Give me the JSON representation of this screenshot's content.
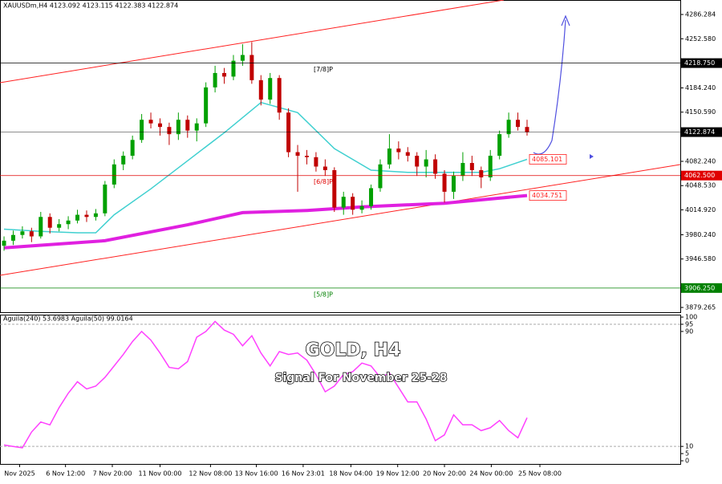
{
  "chart_data": [
    {
      "type": "candlestick",
      "title": "XAUUSDm,H4  4123.092 4123.115 4122.383 4122.874",
      "bull_color": "#00a000",
      "bear_color": "#c00000",
      "candles": [
        [
          3965,
          3978,
          3958,
          3972
        ],
        [
          3972,
          3986,
          3966,
          3980
        ],
        [
          3980,
          3992,
          3975,
          3985
        ],
        [
          3985,
          3990,
          3970,
          3978
        ],
        [
          3978,
          4012,
          3975,
          4005
        ],
        [
          4005,
          4010,
          3982,
          3990
        ],
        [
          3990,
          4002,
          3985,
          3995
        ],
        [
          3995,
          4006,
          3988,
          4000
        ],
        [
          4000,
          4015,
          3996,
          4008
        ],
        [
          4008,
          4014,
          3998,
          4005
        ],
        [
          4005,
          4016,
          4000,
          4010
        ],
        [
          4010,
          4055,
          4006,
          4050
        ],
        [
          4050,
          4085,
          4045,
          4078
        ],
        [
          4078,
          4096,
          4070,
          4090
        ],
        [
          4090,
          4118,
          4085,
          4112
        ],
        [
          4112,
          4148,
          4108,
          4140
        ],
        [
          4140,
          4150,
          4128,
          4135
        ],
        [
          4135,
          4142,
          4118,
          4130
        ],
        [
          4130,
          4136,
          4105,
          4120
        ],
        [
          4120,
          4150,
          4112,
          4140
        ],
        [
          4140,
          4146,
          4115,
          4125
        ],
        [
          4125,
          4142,
          4110,
          4135
        ],
        [
          4135,
          4192,
          4130,
          4185
        ],
        [
          4185,
          4215,
          4178,
          4205
        ],
        [
          4205,
          4212,
          4190,
          4200
        ],
        [
          4200,
          4230,
          4195,
          4222
        ],
        [
          4222,
          4245,
          4215,
          4230
        ],
        [
          4230,
          4248,
          4190,
          4195
        ],
        [
          4195,
          4202,
          4160,
          4168
        ],
        [
          4168,
          4205,
          4162,
          4198
        ],
        [
          4198,
          4202,
          4140,
          4150
        ],
        [
          4150,
          4156,
          4088,
          4095
        ],
        [
          4095,
          4105,
          4040,
          4090
        ],
        [
          4090,
          4098,
          4078,
          4088
        ],
        [
          4088,
          4095,
          4068,
          4075
        ],
        [
          4075,
          4085,
          4062,
          4070
        ],
        [
          4070,
          4074,
          4012,
          4018
        ],
        [
          4018,
          4040,
          4008,
          4033
        ],
        [
          4033,
          4038,
          4008,
          4015
        ],
        [
          4015,
          4028,
          4010,
          4020
        ],
        [
          4020,
          4050,
          4015,
          4045
        ],
        [
          4045,
          4085,
          4040,
          4078
        ],
        [
          4078,
          4120,
          4072,
          4100
        ],
        [
          4100,
          4110,
          4085,
          4095
        ],
        [
          4095,
          4102,
          4082,
          4090
        ],
        [
          4090,
          4095,
          4062,
          4075
        ],
        [
          4075,
          4098,
          4060,
          4085
        ],
        [
          4085,
          4092,
          4058,
          4065
        ],
        [
          4065,
          4070,
          4025,
          4040
        ],
        [
          4040,
          4068,
          4030,
          4062
        ],
        [
          4062,
          4095,
          4055,
          4080
        ],
        [
          4080,
          4090,
          4062,
          4070
        ],
        [
          4070,
          4075,
          4045,
          4060
        ],
        [
          4060,
          4098,
          4055,
          4090
        ],
        [
          4090,
          4125,
          4085,
          4120
        ],
        [
          4120,
          4150,
          4115,
          4140
        ],
        [
          4140,
          4150,
          4125,
          4130
        ],
        [
          4130,
          4140,
          4118,
          4122.874
        ]
      ],
      "series": [
        {
          "color": "#40d0d0",
          "width": 1.5,
          "x": [
            0,
            4,
            8,
            10,
            12,
            16,
            20,
            24,
            28,
            32,
            36,
            40,
            44,
            48,
            52,
            54,
            57
          ],
          "values": [
            3988,
            3985,
            3983,
            3983,
            4008,
            4044,
            4083,
            4122,
            4164,
            4150,
            4100,
            4070,
            4067,
            4067,
            4067,
            4072,
            4085.101
          ]
        },
        {
          "color": "#e020e0",
          "width": 4,
          "x": [
            0,
            11,
            20,
            26,
            33,
            39,
            48,
            57
          ],
          "values": [
            3962,
            3972,
            3994,
            4011,
            4014,
            4019,
            4024,
            4034.751
          ]
        }
      ],
      "levels": [
        {
          "value": 4218.75,
          "label": "4218.750",
          "color": "#000000",
          "tag": "[7/8]P"
        },
        {
          "value": 4122.874,
          "label": "4122.874",
          "color": "#000000"
        },
        {
          "value": 4062.5,
          "label": "4062.500",
          "color": "#e00000",
          "tag": "[6/8]P"
        },
        {
          "value": 3906.25,
          "label": "3906.250",
          "color": "#008000",
          "tag": "[5/8]P"
        }
      ],
      "xlim": [
        -0.44,
        73.7
      ],
      "xticks": [
        {
          "value": 1.7,
          "label": "Nov 2025"
        },
        {
          "value": 6.7,
          "label": "6 Nov 12:00"
        },
        {
          "value": 11.8,
          "label": "7 Nov 20:00"
        },
        {
          "value": 17.0,
          "label": "11 Nov 00:00"
        },
        {
          "value": 22.5,
          "label": "12 Nov 08:00"
        },
        {
          "value": 27.5,
          "label": "13 Nov 16:00"
        },
        {
          "value": 32.6,
          "label": "16 Nov 23:01"
        },
        {
          "value": 37.8,
          "label": "18 Nov 04:00"
        },
        {
          "value": 42.9,
          "label": "19 Nov 12:00"
        },
        {
          "value": 48.0,
          "label": "20 Nov 20:00"
        },
        {
          "value": 53.1,
          "label": "24 Nov 00:00"
        },
        {
          "value": 58.4,
          "label": "25 Nov 08:00"
        }
      ],
      "ylim": [
        3871.5,
        4306.4
      ],
      "yticks": [
        4286.284,
        {
          "value": 4252.58,
          "label": "4252.580"
        },
        {
          "value": 4184.24,
          "label": "4184.240"
        },
        {
          "value": 4150.59,
          "label": "4150.590"
        },
        {
          "value": 4082.24,
          "label": "4082.240"
        },
        {
          "value": 4048.53,
          "label": "4048.530"
        },
        {
          "value": 4014.92,
          "label": "4014.920"
        },
        {
          "value": 3980.24,
          "label": "3980.240"
        },
        {
          "value": 3946.58,
          "label": "3946.580"
        },
        3879.265
      ]
    },
    {
      "type": "line",
      "title": "GOLD, H4",
      "subtitle": "Signal For November 25-28",
      "header": "Aguila(240) 53.6983  Aguila(50) 99.0164",
      "color": "#ff40ff",
      "values": [
        11,
        10,
        9,
        20,
        27,
        25,
        37,
        47,
        55,
        50,
        52,
        58,
        66,
        74,
        83,
        90,
        84,
        75,
        65,
        64,
        69,
        86,
        90,
        97,
        91,
        88,
        80,
        87,
        75,
        66,
        76,
        74,
        75,
        70,
        60,
        48,
        52,
        60,
        62,
        68,
        66,
        58,
        61,
        51,
        41,
        41,
        29,
        14,
        18,
        32,
        25,
        25,
        21,
        23,
        28,
        21,
        16,
        30
      ],
      "xlim": [
        -0.44,
        73.7
      ],
      "ylim": [
        -2.2,
        101.7
      ],
      "yticks": [
        0,
        5,
        10,
        90,
        95,
        100
      ],
      "dashed_levels": [
        10,
        95
      ]
    }
  ]
}
